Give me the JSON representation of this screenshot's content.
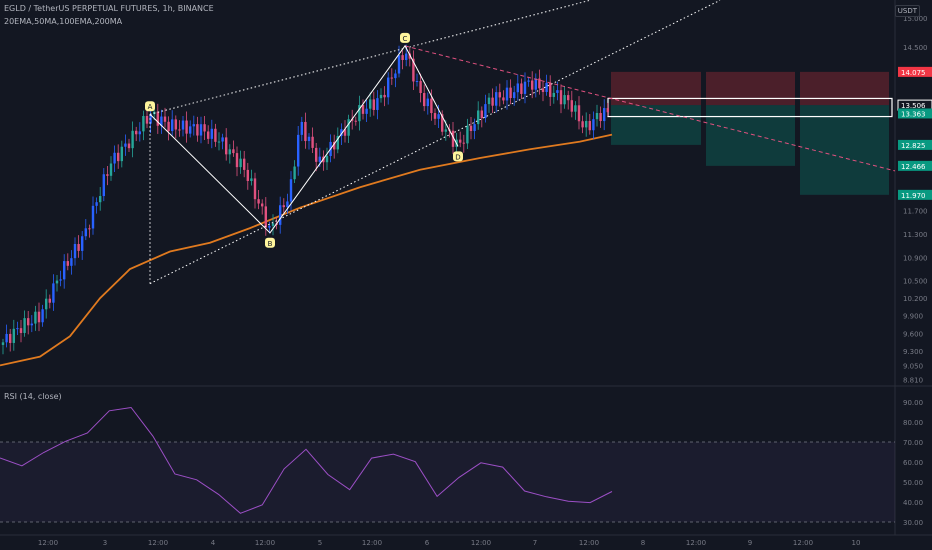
{
  "header": {
    "symbol": "EGLD / TetherUS PERPETUAL FUTURES, 1h, BINANCE",
    "indicators": "20EMA,50MA,100EMA,200MA",
    "currency": "USDT"
  },
  "rsi": {
    "label": "RSI (14, close)",
    "ticks": [
      "90.00",
      "80.00",
      "70.00",
      "60.00",
      "50.00",
      "40.00",
      "30.00"
    ],
    "upper_band": 70,
    "lower_band": 30
  },
  "price_axis": {
    "ticks": [
      "15.000",
      "14.500",
      "14.075",
      "13.506",
      "13.363",
      "12.825",
      "12.466",
      "11.970",
      "11.700",
      "11.300",
      "10.900",
      "10.500",
      "10.200",
      "9.900",
      "9.600",
      "9.300",
      "9.050",
      "8.810"
    ],
    "labels": [
      {
        "value": "14.075",
        "color": "#f23645"
      },
      {
        "value": "13.506",
        "color": "#ffffff"
      },
      {
        "value": "13.363",
        "color": "#089981"
      },
      {
        "value": "12.825",
        "color": "#089981"
      },
      {
        "value": "12.466",
        "color": "#089981"
      },
      {
        "value": "11.970",
        "color": "#089981"
      }
    ]
  },
  "time_axis": {
    "labels": [
      "12:00",
      "3",
      "12:00",
      "4",
      "12:00",
      "5",
      "12:00",
      "6",
      "12:00",
      "7",
      "12:00",
      "8",
      "12:00",
      "9",
      "12:00",
      "10"
    ]
  },
  "pattern": {
    "points": [
      {
        "label": "A",
        "price": 13.35
      },
      {
        "label": "B",
        "price": 11.32
      },
      {
        "label": "C",
        "price": 14.52
      },
      {
        "label": "D",
        "price": 12.8
      }
    ]
  },
  "chart_data": {
    "type": "candlestick",
    "title": "EGLD / TetherUS PERPETUAL FUTURES, 1h, BINANCE",
    "ylim": [
      8.8,
      15.1
    ],
    "series": [
      {
        "name": "20EMA,50MA,100EMA,200MA",
        "type": "line",
        "color": "#e07a1f",
        "values": [
          9.05,
          9.2,
          9.55,
          10.2,
          10.7,
          11.0,
          11.15,
          11.4,
          11.75,
          12.1,
          12.4,
          12.6,
          12.75,
          12.88,
          13.0
        ]
      }
    ],
    "rsi_values": [
      62,
      58,
      65,
      70,
      75,
      85,
      88,
      72,
      55,
      50,
      45,
      33,
      40,
      55,
      68,
      52,
      48,
      60,
      66,
      58,
      45,
      50,
      62,
      55,
      48,
      40,
      43,
      37,
      48
    ]
  },
  "colors": {
    "up": "#26a69a",
    "up_blue": "#2962ff",
    "down": "#e0517f",
    "ma": "#e07a1f",
    "rsi": "#9c4fc6"
  }
}
